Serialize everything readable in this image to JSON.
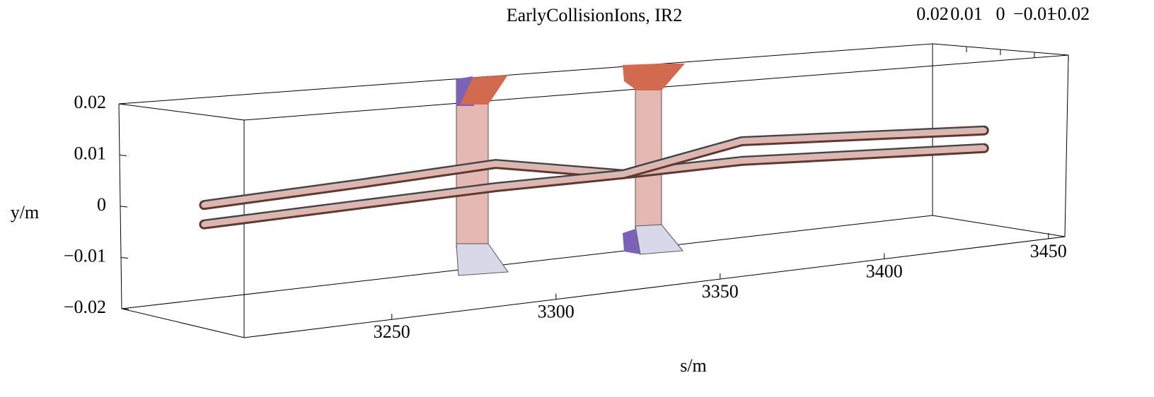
{
  "chart_data": {
    "type": "beam3d",
    "title": "EarlyCollisionIons,  IR2",
    "xlabel": "s/m",
    "ylabel": "y/m",
    "xlim": [
      3205,
      3455
    ],
    "xticks": [
      3250,
      3300,
      3350,
      3400,
      3450
    ],
    "ylim": [
      -0.02,
      0.02
    ],
    "yticks": [
      {
        "value": -0.02,
        "label": "−0.02"
      },
      {
        "value": -0.01,
        "label": "−0.01"
      },
      0,
      0.01,
      0.02
    ],
    "zlim": [
      0.02,
      -0.02
    ],
    "zticks": [
      0.02,
      0.01,
      0,
      {
        "value": -0.01,
        "label": "−0.01"
      },
      {
        "value": -0.02,
        "label": "−0.02"
      }
    ],
    "x": [
      3212,
      3260,
      3301,
      3340,
      3376,
      3450
    ],
    "series": [
      {
        "color": "#e2b4ac",
        "values": [
          0.0019,
          0.0032,
          0.0046,
          0,
          0.0004,
          -0.002
        ]
      },
      {
        "color": "#e2b4ac",
        "values": [
          -0.0018,
          -0.0009,
          -0.0001,
          0,
          0.0046,
          0.002
        ]
      }
    ]
  }
}
